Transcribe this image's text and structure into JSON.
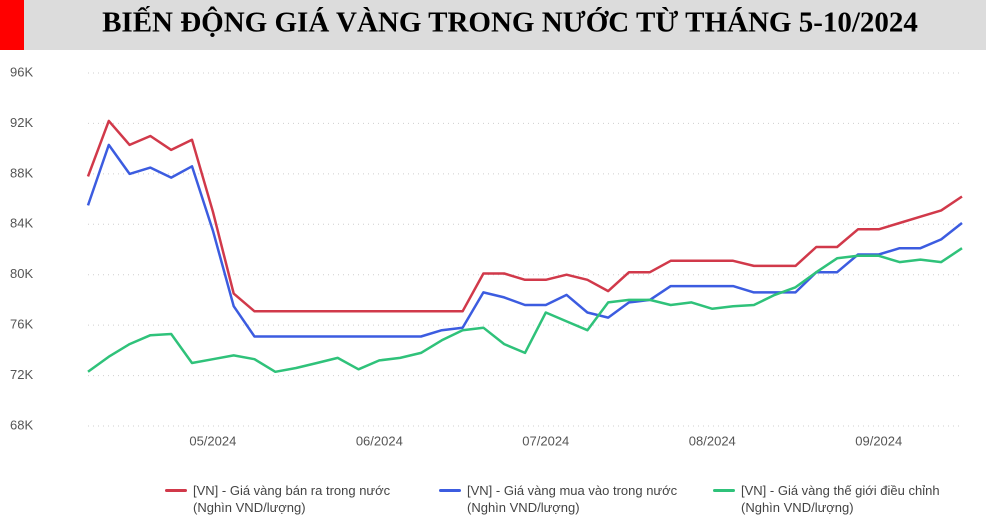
{
  "chart_data": {
    "type": "line",
    "title": "BIẾN ĐỘNG GIÁ VÀNG TRONG NƯỚC TỪ THÁNG 5-10/2024",
    "categories": [
      null,
      null,
      null,
      null,
      null,
      null,
      "05/2024",
      null,
      null,
      null,
      null,
      null,
      null,
      null,
      "06/2024",
      null,
      null,
      null,
      null,
      null,
      null,
      null,
      "07/2024",
      null,
      null,
      null,
      null,
      null,
      null,
      null,
      "08/2024",
      null,
      null,
      null,
      null,
      null,
      null,
      null,
      "09/2024",
      null,
      null,
      null,
      null
    ],
    "series": [
      {
        "name": "[VN] - Giá vàng bán ra trong nước (Nghìn VND/lượng)",
        "color": "#d1394a",
        "values": [
          87800,
          92200,
          90300,
          91000,
          89900,
          90700,
          85000,
          78500,
          77100,
          77100,
          77100,
          77100,
          77100,
          77100,
          77100,
          77100,
          77100,
          77100,
          77100,
          80100,
          80100,
          79600,
          79600,
          80000,
          79600,
          78700,
          80200,
          80200,
          81100,
          81100,
          81100,
          81100,
          80700,
          80700,
          80700,
          82200,
          82200,
          83600,
          83600,
          84100,
          84600,
          85100,
          86200
        ]
      },
      {
        "name": "[VN] - Giá vàng mua vào trong nước (Nghìn VND/lượng)",
        "color": "#3c5ce0",
        "values": [
          85500,
          90300,
          88000,
          88500,
          87700,
          88600,
          83500,
          77500,
          75100,
          75100,
          75100,
          75100,
          75100,
          75100,
          75100,
          75100,
          75100,
          75600,
          75800,
          78600,
          78200,
          77600,
          77600,
          78400,
          77000,
          76600,
          77800,
          78000,
          79100,
          79100,
          79100,
          79100,
          78600,
          78600,
          78600,
          80200,
          80200,
          81600,
          81600,
          82100,
          82100,
          82800,
          84100
        ]
      },
      {
        "name": "[VN] - Giá vàng thế giới điều chỉnh (Nghìn VND/lượng)",
        "color": "#2fc27a",
        "values": [
          72300,
          73500,
          74500,
          75200,
          75300,
          73000,
          73300,
          73600,
          73300,
          72300,
          72600,
          73000,
          73400,
          72500,
          73200,
          73400,
          73800,
          74800,
          75600,
          75800,
          74500,
          73800,
          77000,
          76300,
          75600,
          77800,
          78000,
          78000,
          77600,
          77800,
          77300,
          77500,
          77600,
          78400,
          79000,
          80200,
          81300,
          81500,
          81500,
          81000,
          81200,
          81000,
          82100
        ]
      }
    ],
    "ylim": [
      68000,
      96000
    ],
    "yticks": [
      {
        "value": 68000,
        "label": "68K"
      },
      {
        "value": 72000,
        "label": "72K"
      },
      {
        "value": 76000,
        "label": "76K"
      },
      {
        "value": 80000,
        "label": "80K"
      },
      {
        "value": 84000,
        "label": "84K"
      },
      {
        "value": 88000,
        "label": "88K"
      },
      {
        "value": 92000,
        "label": "92K"
      },
      {
        "value": 96000,
        "label": "96K"
      }
    ],
    "grid": true
  }
}
